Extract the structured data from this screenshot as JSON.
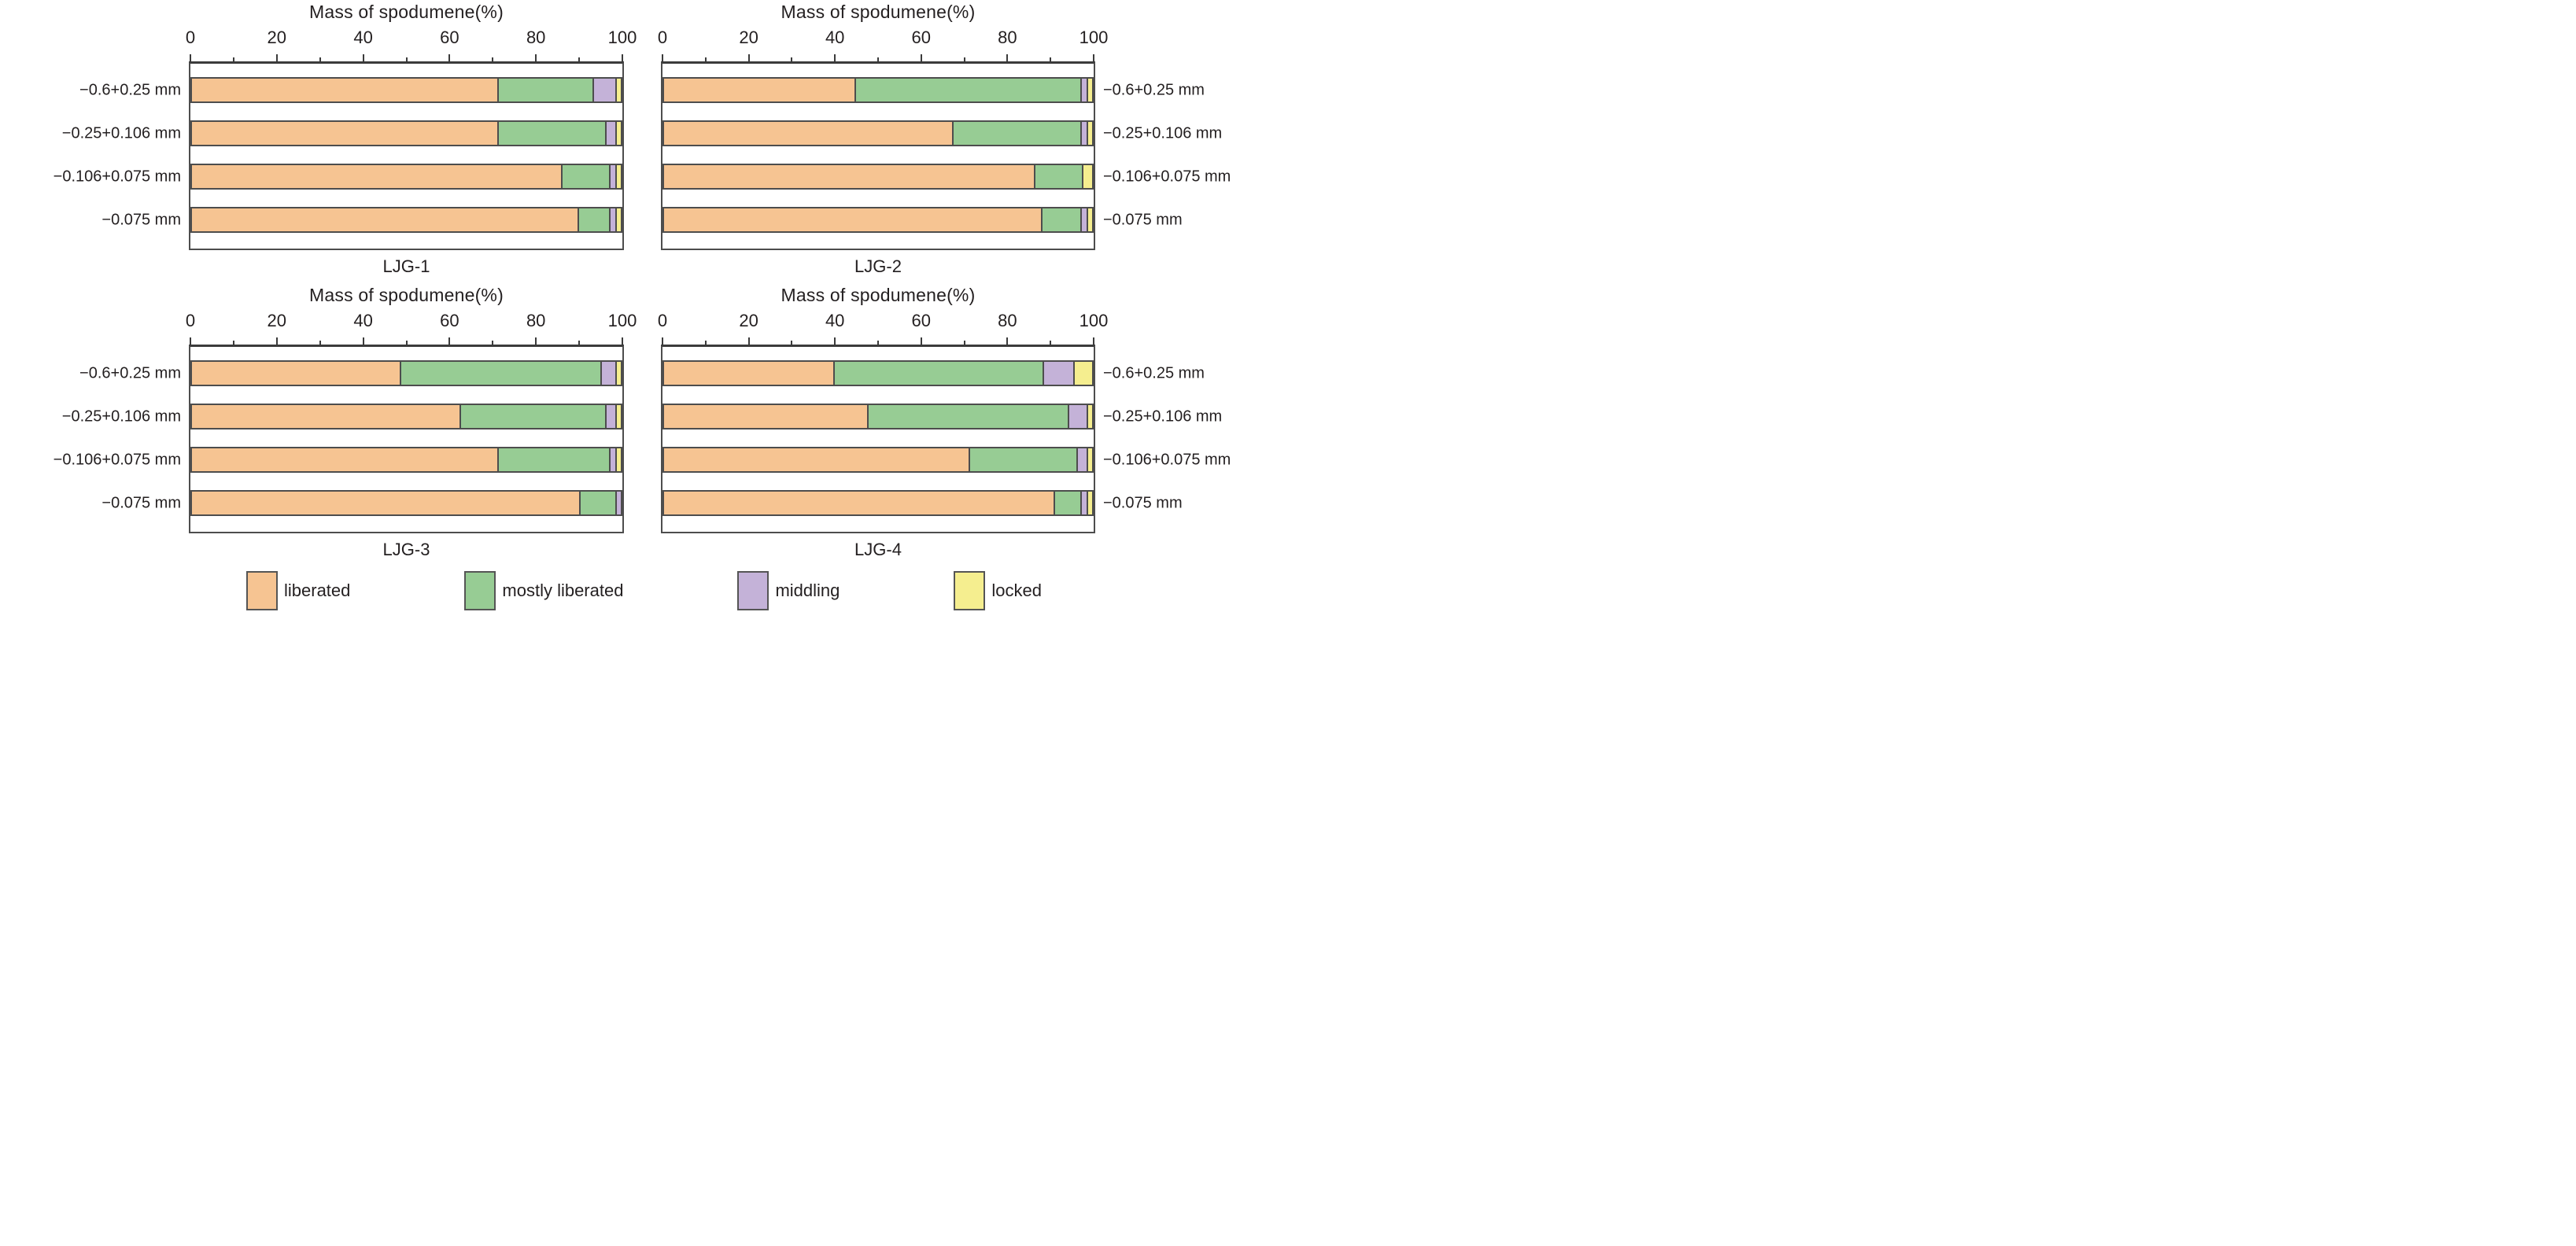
{
  "figure": {
    "axis_title": "Mass of spodumene(%)",
    "x_ticks": [
      0,
      20,
      40,
      60,
      80,
      100
    ],
    "x_minor_ticks": [
      10,
      30,
      50,
      70,
      90
    ],
    "x_range": [
      0,
      100
    ]
  },
  "colors": {
    "liberated": "#F6C492",
    "mostly_liberated": "#97CC94",
    "middling": "#C4B2D8",
    "locked": "#F5EE8F",
    "bar_border": "#4d4d4d",
    "axis": "#3b3b3b",
    "text": "#231f20"
  },
  "legend": [
    {
      "key": "liberated",
      "label": "liberated"
    },
    {
      "key": "mostly_liberated",
      "label": "mostly liberated"
    },
    {
      "key": "middling",
      "label": "middling"
    },
    {
      "key": "locked",
      "label": "locked"
    }
  ],
  "chart_data": [
    {
      "type": "bar",
      "stacked": true,
      "orientation": "horizontal",
      "name": "LJG-1",
      "xlabel": "Mass of spodumene(%)",
      "xlim": [
        0,
        100
      ],
      "label_side": "left",
      "grid": false,
      "categories": [
        "−0.6+0.25 mm",
        "−0.25+0.106 mm",
        "−0.106+0.075 mm",
        "−0.075 mm"
      ],
      "series": [
        {
          "name": "liberated",
          "values": [
            72,
            72,
            87,
            91
          ]
        },
        {
          "name": "mostly liberated",
          "values": [
            22,
            25,
            11,
            7
          ]
        },
        {
          "name": "middling",
          "values": [
            5,
            2,
            1,
            1
          ]
        },
        {
          "name": "locked",
          "values": [
            1,
            1,
            1,
            1
          ]
        }
      ]
    },
    {
      "type": "bar",
      "stacked": true,
      "orientation": "horizontal",
      "name": "LJG-2",
      "xlabel": "Mass of spodumene(%)",
      "xlim": [
        0,
        100
      ],
      "label_side": "right",
      "grid": false,
      "categories": [
        "−0.6+0.25 mm",
        "−0.25+0.106 mm",
        "−0.106+0.075 mm",
        "−0.075 mm"
      ],
      "series": [
        {
          "name": "liberated",
          "values": [
            45,
            68,
            87,
            89
          ]
        },
        {
          "name": "mostly liberated",
          "values": [
            53,
            30,
            11,
            9
          ]
        },
        {
          "name": "middling",
          "values": [
            1,
            1,
            0,
            1
          ]
        },
        {
          "name": "locked",
          "values": [
            1,
            1,
            2,
            1
          ]
        }
      ]
    },
    {
      "type": "bar",
      "stacked": true,
      "orientation": "horizontal",
      "name": "LJG-3",
      "xlabel": "Mass of spodumene(%)",
      "xlim": [
        0,
        100
      ],
      "label_side": "left",
      "grid": false,
      "categories": [
        "−0.6+0.25 mm",
        "−0.25+0.106 mm",
        "−0.106+0.075 mm",
        "−0.075 mm"
      ],
      "series": [
        {
          "name": "liberated",
          "values": [
            49,
            63,
            72,
            91
          ]
        },
        {
          "name": "mostly liberated",
          "values": [
            47,
            34,
            26,
            8
          ]
        },
        {
          "name": "middling",
          "values": [
            3,
            2,
            1,
            1
          ]
        },
        {
          "name": "locked",
          "values": [
            1,
            1,
            1,
            0
          ]
        }
      ]
    },
    {
      "type": "bar",
      "stacked": true,
      "orientation": "horizontal",
      "name": "LJG-4",
      "xlabel": "Mass of spodumene(%)",
      "xlim": [
        0,
        100
      ],
      "label_side": "right",
      "grid": false,
      "categories": [
        "−0.6+0.25 mm",
        "−0.25+0.106 mm",
        "−0.106+0.075 mm",
        "−0.075 mm"
      ],
      "series": [
        {
          "name": "liberated",
          "values": [
            40,
            48,
            72,
            92
          ]
        },
        {
          "name": "mostly liberated",
          "values": [
            49,
            47,
            25,
            6
          ]
        },
        {
          "name": "middling",
          "values": [
            7,
            4,
            2,
            1
          ]
        },
        {
          "name": "locked",
          "values": [
            4,
            1,
            1,
            1
          ]
        }
      ]
    }
  ]
}
